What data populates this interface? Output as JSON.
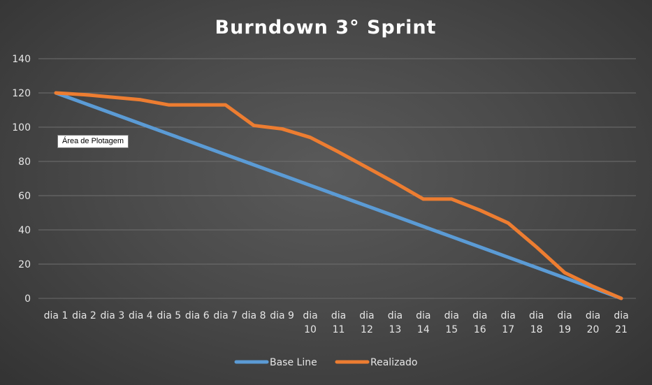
{
  "chart_data": {
    "type": "line",
    "title": "Burndown 3° Sprint",
    "categories": [
      [
        "dia 1"
      ],
      [
        "dia 2"
      ],
      [
        "dia 3"
      ],
      [
        "dia 4"
      ],
      [
        "dia 5"
      ],
      [
        "dia 6"
      ],
      [
        "dia 7"
      ],
      [
        "dia 8"
      ],
      [
        "dia 9"
      ],
      [
        "dia",
        "10"
      ],
      [
        "dia",
        "11"
      ],
      [
        "dia",
        "12"
      ],
      [
        "dia",
        "13"
      ],
      [
        "dia",
        "14"
      ],
      [
        "dia",
        "15"
      ],
      [
        "dia",
        "16"
      ],
      [
        "dia",
        "17"
      ],
      [
        "dia",
        "18"
      ],
      [
        "dia",
        "19"
      ],
      [
        "dia",
        "20"
      ],
      [
        "dia",
        "21"
      ]
    ],
    "ylim": [
      0,
      140
    ],
    "yticks": [
      0,
      20,
      40,
      60,
      80,
      100,
      120,
      140
    ],
    "grid": true,
    "legend_position": "bottom",
    "series": [
      {
        "name": "Base Line",
        "color": "#5b9bd5",
        "values": [
          120,
          114,
          108,
          102,
          96,
          90,
          84,
          78,
          72,
          66,
          60,
          54,
          48,
          42,
          36,
          30,
          24,
          18,
          12,
          6,
          0
        ]
      },
      {
        "name": "Realizado",
        "color": "#ed7d31",
        "values": [
          120,
          119,
          117.5,
          116,
          113,
          113,
          113,
          101,
          99,
          94,
          85.5,
          76.5,
          67.5,
          58,
          58,
          51.5,
          44,
          30,
          15,
          7,
          0
        ]
      }
    ]
  },
  "tooltip": {
    "text": "Área de Plotagem"
  }
}
